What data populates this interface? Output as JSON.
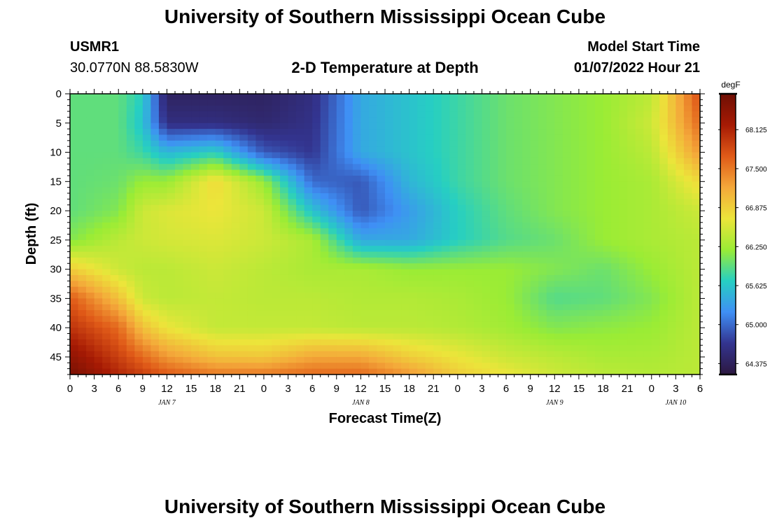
{
  "page": {
    "title": "University of Southern Mississippi Ocean Cube",
    "station": "USMR1",
    "coordinates": "30.0770N  88.5830W",
    "subtitle": "2-D Temperature at Depth",
    "model_start_label": "Model Start Time",
    "model_start_value": "01/07/2022 Hour 21",
    "footer_title": "University of Southern Mississippi Ocean Cube"
  },
  "chart_data": {
    "type": "heatmap",
    "title": "2-D Temperature at Depth",
    "xlabel": "Forecast Time(Z)",
    "ylabel": "Depth (ft)",
    "x_tick_labels": [
      "0",
      "3",
      "6",
      "9",
      "12",
      "15",
      "18",
      "21",
      "0",
      "3",
      "6",
      "9",
      "12",
      "15",
      "18",
      "21",
      "0",
      "3",
      "6",
      "9",
      "12",
      "15",
      "18",
      "21",
      "0",
      "3",
      "6"
    ],
    "x_date_labels": [
      {
        "label": "JAN 7",
        "tick_index": 4
      },
      {
        "label": "JAN 8",
        "tick_index": 12
      },
      {
        "label": "JAN 9",
        "tick_index": 20
      },
      {
        "label": "JAN 10",
        "tick_index": 25
      }
    ],
    "y_ticks": [
      0,
      5,
      10,
      15,
      20,
      25,
      30,
      35,
      40,
      45
    ],
    "ylim": [
      0,
      48
    ],
    "y_inverted": true,
    "colorbar": {
      "unit": "degF",
      "ticks": [
        64.375,
        65.0,
        65.625,
        66.25,
        66.875,
        67.5,
        68.125
      ],
      "tick_labels": [
        "64.375",
        "65.000",
        "65.625",
        "66.250",
        "66.875",
        "67.500",
        "68.125"
      ],
      "range": [
        64.2,
        68.7
      ],
      "colors": [
        "#2c1840",
        "#33348f",
        "#3f8ff5",
        "#26cfc2",
        "#9aec35",
        "#ece53a",
        "#f4a83a",
        "#e05a18",
        "#a61a04",
        "#6e0f04"
      ]
    },
    "grid": false,
    "depths_ft": [
      0,
      5,
      10,
      15,
      20,
      25,
      30,
      35,
      40,
      45,
      48
    ],
    "hours": [
      0,
      6,
      9,
      12,
      18,
      24,
      30,
      36,
      42,
      48,
      54,
      60,
      66,
      72,
      78
    ],
    "temperature_degF": [
      [
        65.95,
        65.95,
        65.7,
        64.4,
        64.4,
        64.4,
        64.6,
        65.4,
        65.6,
        65.8,
        66.0,
        66.1,
        66.2,
        66.4,
        67.8
      ],
      [
        65.95,
        65.95,
        65.6,
        64.6,
        64.6,
        64.5,
        64.65,
        65.4,
        65.6,
        65.8,
        66.0,
        66.1,
        66.2,
        66.5,
        67.6
      ],
      [
        65.95,
        65.95,
        65.8,
        65.5,
        65.7,
        64.9,
        64.7,
        65.4,
        65.6,
        65.8,
        66.0,
        66.1,
        66.2,
        66.4,
        67.3
      ],
      [
        65.95,
        66.0,
        66.2,
        66.2,
        66.8,
        66.2,
        65.0,
        64.9,
        65.5,
        65.8,
        66.0,
        66.1,
        66.2,
        66.3,
        66.8
      ],
      [
        65.95,
        66.1,
        66.5,
        66.6,
        66.7,
        66.5,
        65.6,
        64.9,
        65.3,
        65.7,
        65.95,
        66.1,
        66.2,
        66.3,
        66.5
      ],
      [
        66.1,
        66.4,
        66.5,
        66.55,
        66.6,
        66.5,
        66.3,
        65.4,
        65.4,
        65.7,
        65.9,
        66.0,
        66.2,
        66.3,
        66.4
      ],
      [
        66.9,
        66.5,
        66.4,
        66.4,
        66.5,
        66.4,
        66.3,
        66.3,
        66.2,
        66.2,
        66.2,
        66.1,
        66.0,
        66.2,
        66.4
      ],
      [
        67.7,
        67.0,
        66.5,
        66.4,
        66.45,
        66.4,
        66.4,
        66.35,
        66.35,
        66.3,
        66.2,
        65.9,
        65.95,
        66.1,
        66.4
      ],
      [
        68.0,
        67.6,
        67.0,
        66.7,
        66.45,
        66.45,
        66.45,
        66.4,
        66.4,
        66.35,
        66.25,
        66.1,
        66.15,
        66.2,
        66.4
      ],
      [
        68.4,
        67.9,
        67.6,
        67.3,
        67.0,
        66.95,
        67.2,
        67.2,
        66.9,
        66.7,
        66.5,
        66.4,
        66.3,
        66.3,
        66.4
      ],
      [
        68.6,
        68.1,
        67.9,
        67.7,
        67.5,
        67.5,
        67.6,
        67.6,
        67.3,
        66.9,
        66.7,
        66.5,
        66.4,
        66.35,
        66.4
      ]
    ]
  }
}
